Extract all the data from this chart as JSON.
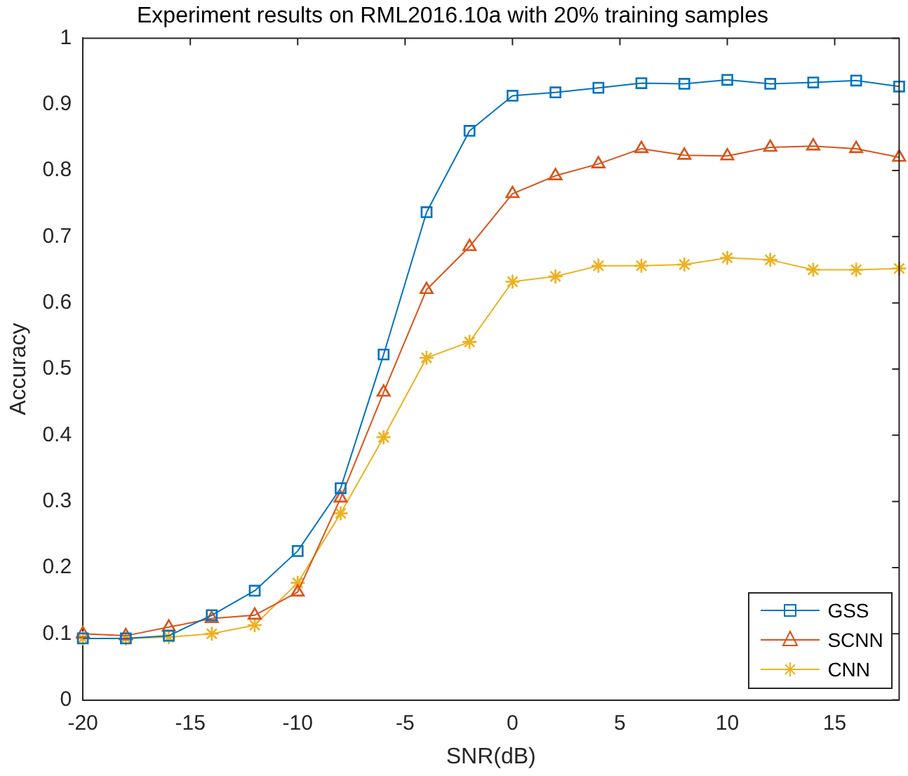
{
  "chart_data": {
    "type": "line",
    "title": "Experiment results on RML2016.10a with 20% training samples",
    "xlabel": "SNR(dB)",
    "ylabel": "Accuracy",
    "x": [
      -20,
      -18,
      -16,
      -14,
      -12,
      -10,
      -8,
      -6,
      -4,
      -2,
      0,
      2,
      4,
      6,
      8,
      10,
      12,
      14,
      16,
      18
    ],
    "series": [
      {
        "name": "GSS",
        "color": "#0072bd",
        "marker": "square",
        "values": [
          0.093,
          0.093,
          0.097,
          0.128,
          0.165,
          0.225,
          0.32,
          0.522,
          0.737,
          0.86,
          0.913,
          0.918,
          0.925,
          0.932,
          0.931,
          0.937,
          0.931,
          0.933,
          0.936,
          0.927
        ]
      },
      {
        "name": "SCNN",
        "color": "#d95319",
        "marker": "triangle",
        "values": [
          0.1,
          0.097,
          0.11,
          0.123,
          0.128,
          0.163,
          0.305,
          0.465,
          0.62,
          0.685,
          0.765,
          0.792,
          0.81,
          0.833,
          0.823,
          0.822,
          0.835,
          0.837,
          0.833,
          0.82
        ]
      },
      {
        "name": "CNN",
        "color": "#edb120",
        "marker": "cross",
        "values": [
          0.093,
          0.093,
          0.095,
          0.1,
          0.113,
          0.177,
          0.282,
          0.397,
          0.517,
          0.541,
          0.632,
          0.64,
          0.656,
          0.656,
          0.658,
          0.668,
          0.665,
          0.65,
          0.65,
          0.652
        ]
      }
    ],
    "xlim": [
      -20,
      18
    ],
    "xticks": [
      -20,
      -15,
      -10,
      -5,
      0,
      5,
      10,
      15
    ],
    "ylim": [
      0,
      1
    ],
    "yticks": [
      0,
      0.1,
      0.2,
      0.3,
      0.4,
      0.5,
      0.6,
      0.7,
      0.8,
      0.9,
      1
    ],
    "grid": false,
    "legend": "bottom right",
    "line_style": "solid"
  }
}
